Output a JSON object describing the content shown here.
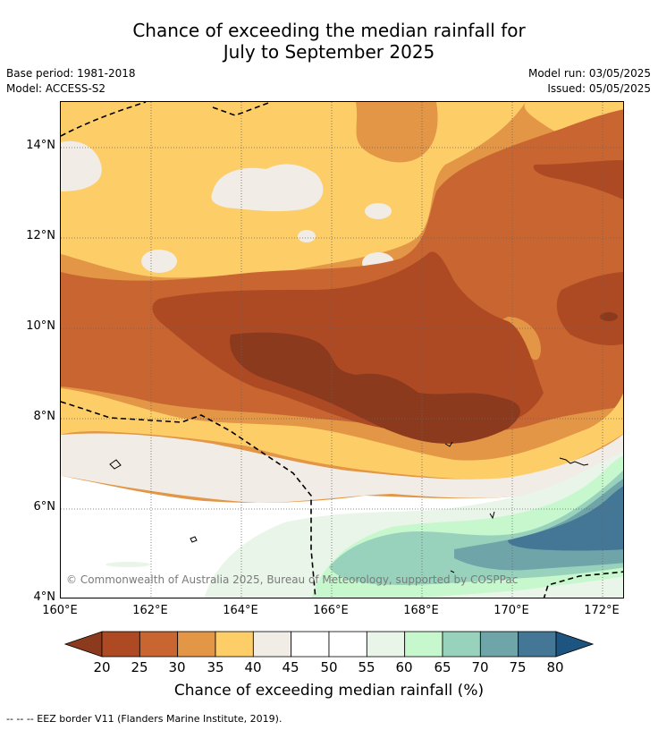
{
  "title_line1": "Chance of exceeding the median rainfall for",
  "title_line2": "July to September 2025",
  "base_period": "Base period: 1981-2018",
  "model": "Model: ACCESS-S2",
  "model_run": "Model run: 03/05/2025",
  "issued": "Issued: 05/05/2025",
  "copyright": "© Commonwealth of Australia 2025, Bureau of Meteorology, supported by COSPPac",
  "lat_labels": [
    "14°N",
    "12°N",
    "10°N",
    "8°N",
    "6°N",
    "4°N"
  ],
  "lon_labels": [
    "160°E",
    "162°E",
    "164°E",
    "166°E",
    "168°E",
    "170°E",
    "172°E"
  ],
  "colorbar": {
    "ticks": [
      "20",
      "25",
      "30",
      "35",
      "40",
      "45",
      "50",
      "55",
      "60",
      "65",
      "70",
      "75",
      "80"
    ],
    "colors": [
      "#8b3a1e",
      "#ad4a23",
      "#c86530",
      "#e29646",
      "#fdcd68",
      "#f1ece6",
      "#ffffff",
      "#ffffff",
      "#e8f5e8",
      "#c7f7cc",
      "#99d2bc",
      "#6fa4a8",
      "#447795",
      "#1d5480"
    ],
    "title": "Chance of exceeding median rainfall (%)"
  },
  "footnote": "--  --  -- EEZ border V11 (Flanders Marine Institute, 2019)."
}
